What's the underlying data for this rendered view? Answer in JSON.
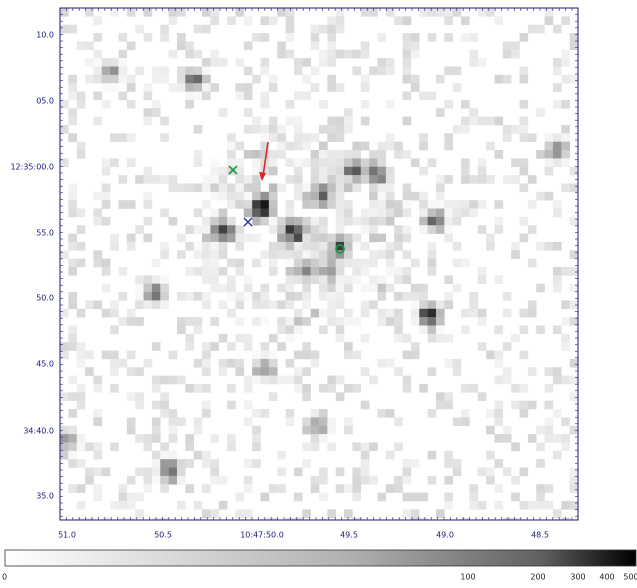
{
  "x_axis": {
    "tick_labels": [
      "51.0",
      "50.5",
      "10:47:50.0",
      "49.5",
      "49.0",
      "48.5"
    ]
  },
  "y_axis": {
    "tick_labels": [
      "10.0",
      "05.0",
      "12:35:00.0",
      "55.0",
      "50.0",
      "45.0",
      "34:40.0",
      "35.0"
    ]
  },
  "colorbar": {
    "tick_labels": [
      "0",
      "100",
      "200",
      "300",
      "400",
      "500"
    ]
  }
}
